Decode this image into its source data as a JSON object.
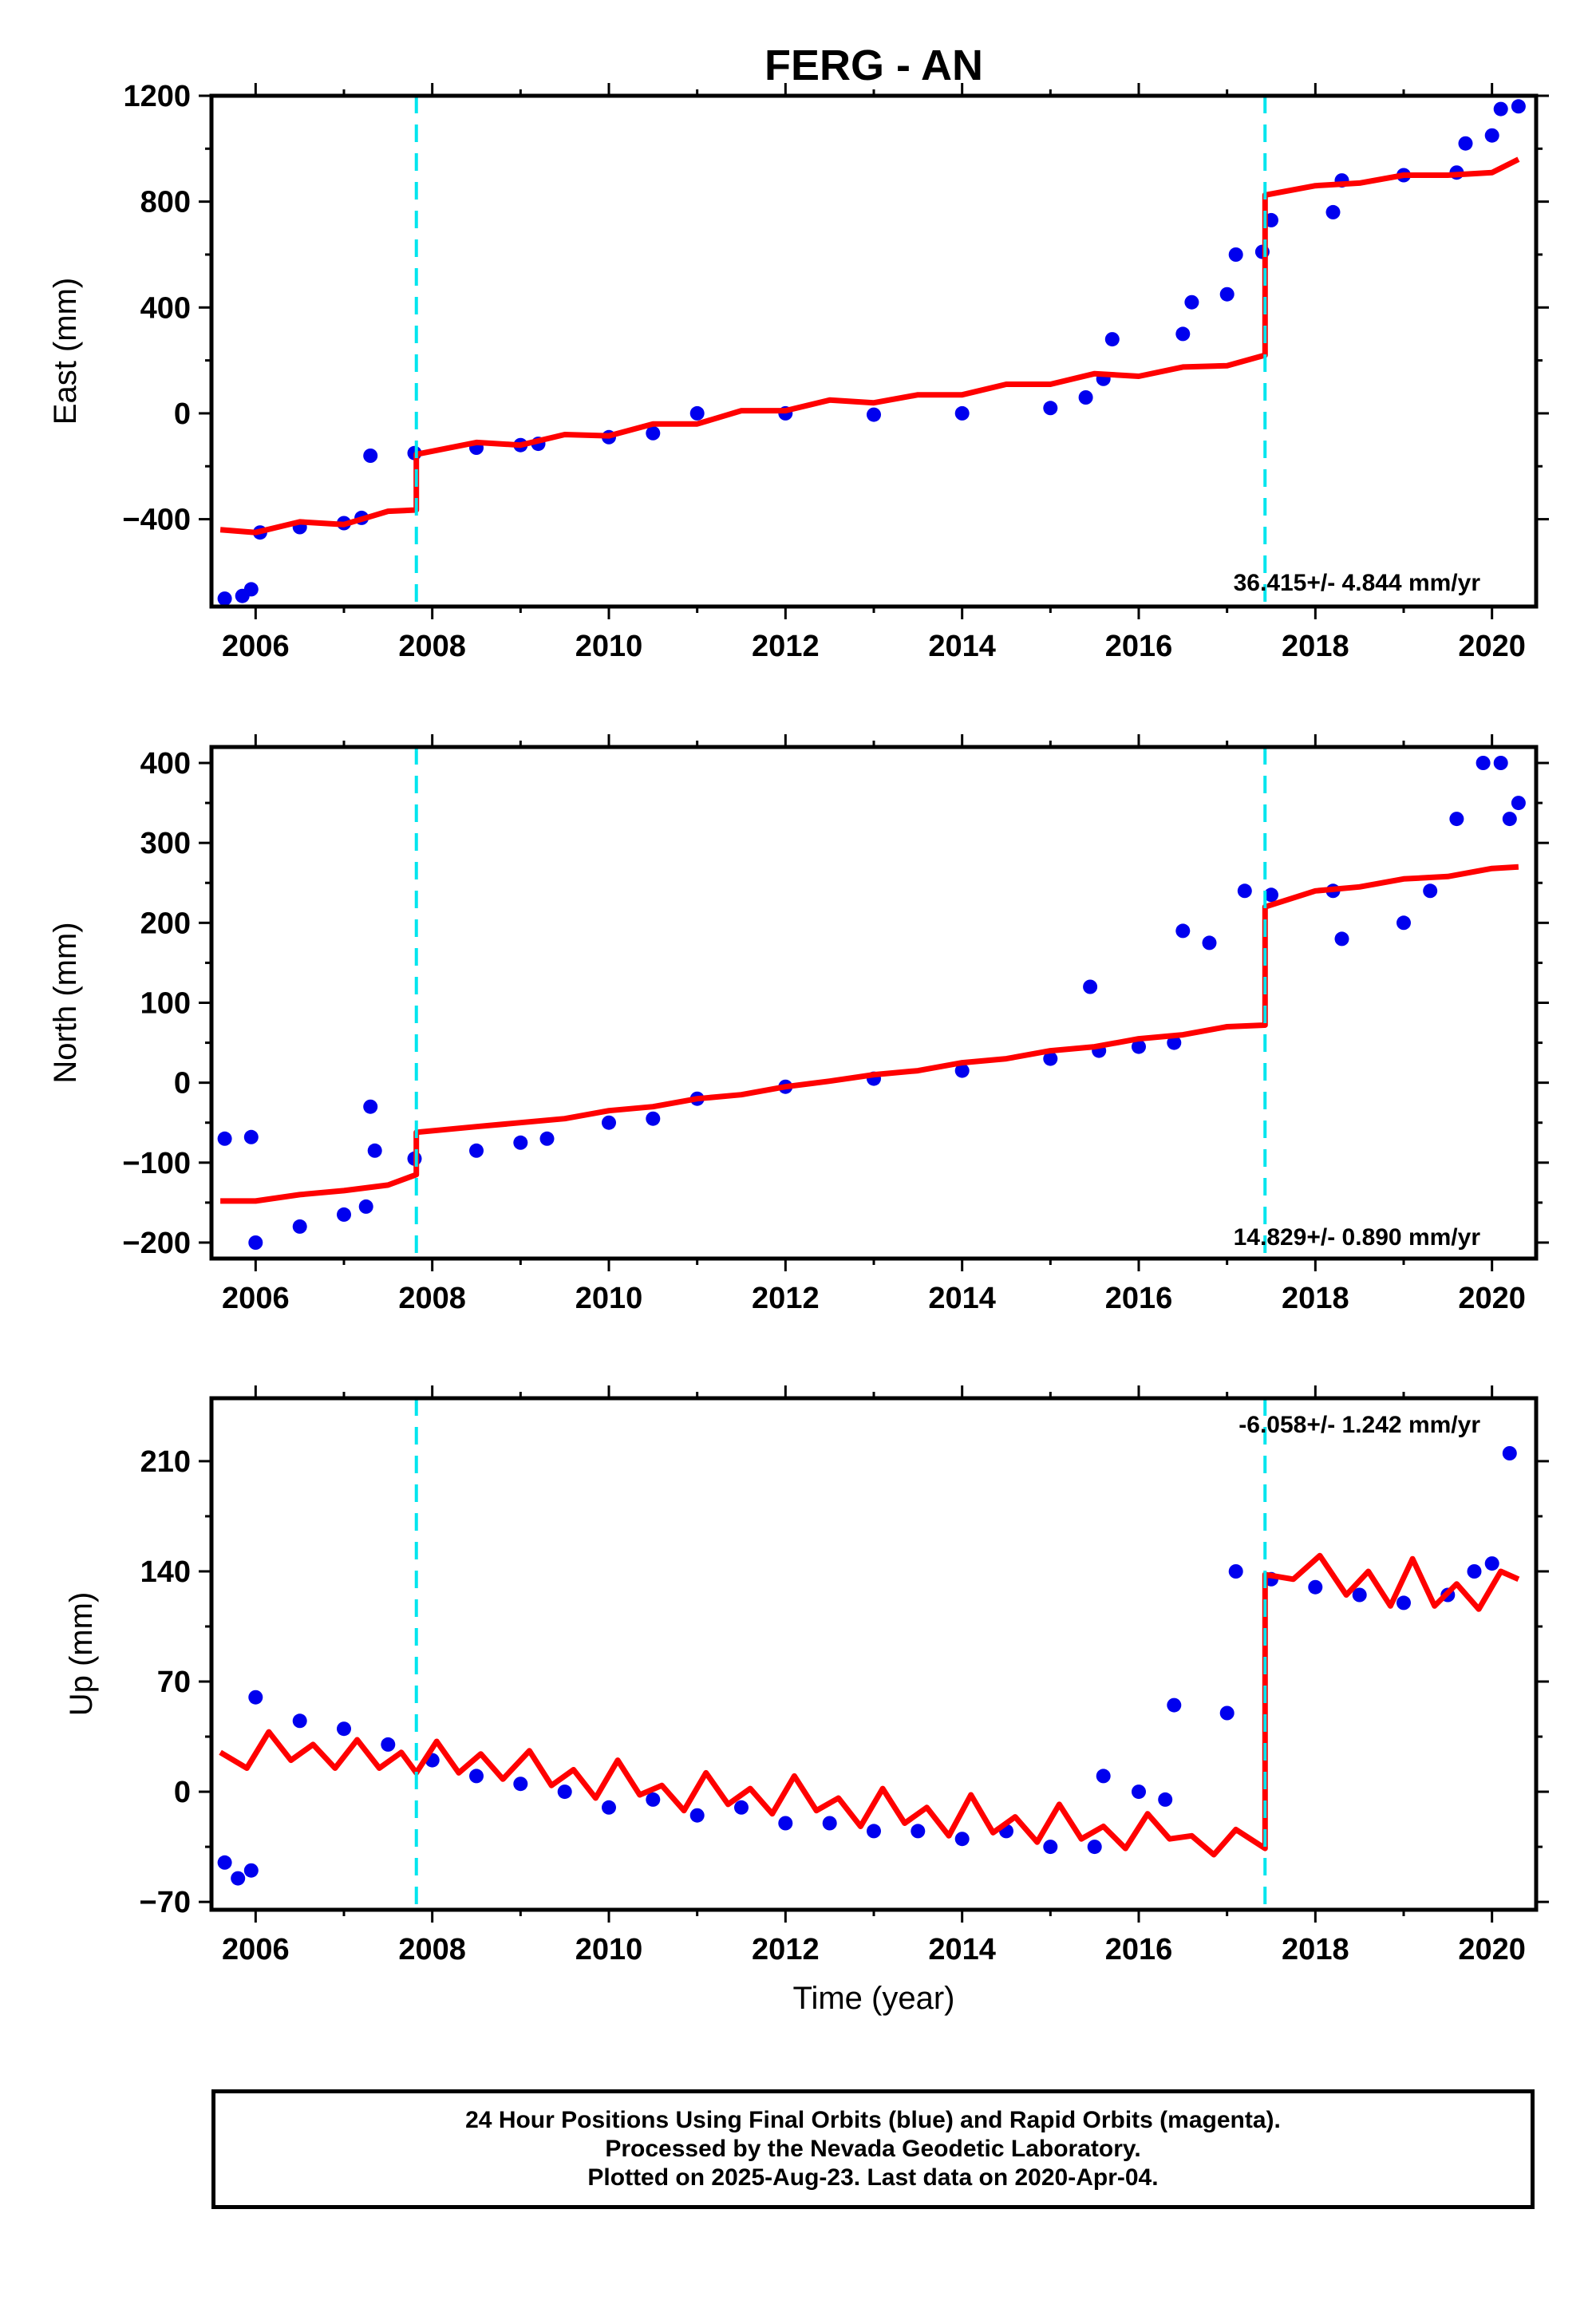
{
  "chart_data": [
    {
      "type": "scatter",
      "title": "FERG - AN",
      "ylabel": "East (mm)",
      "xlabel": "",
      "xlim": [
        2005.5,
        2020.5
      ],
      "ylim": [
        -730,
        1200
      ],
      "xticks": [
        2006,
        2008,
        2010,
        2012,
        2014,
        2016,
        2018,
        2020
      ],
      "xtick_labels": [
        "2006",
        "2008",
        "2010",
        "2012",
        "2014",
        "2016",
        "2018",
        "2020"
      ],
      "yticks": [
        -400,
        0,
        400,
        800,
        1200
      ],
      "ytick_labels": [
        "−400",
        "0",
        "400",
        "800",
        "1200"
      ],
      "rate_text": "36.415+/- 4.844 mm/yr",
      "offsets": [
        2007.82,
        2017.43
      ],
      "observations": [
        [
          2005.65,
          -700
        ],
        [
          2005.85,
          -690
        ],
        [
          2005.95,
          -665
        ],
        [
          2006.05,
          -450
        ],
        [
          2006.5,
          -430
        ],
        [
          2007.0,
          -415
        ],
        [
          2007.2,
          -395
        ],
        [
          2007.3,
          -160
        ],
        [
          2007.8,
          -150
        ],
        [
          2008.5,
          -130
        ],
        [
          2009.0,
          -120
        ],
        [
          2009.2,
          -115
        ],
        [
          2010.0,
          -90
        ],
        [
          2010.5,
          -75
        ],
        [
          2011.0,
          0
        ],
        [
          2012.0,
          0
        ],
        [
          2013.0,
          -5
        ],
        [
          2014.0,
          0
        ],
        [
          2015.0,
          20
        ],
        [
          2015.4,
          60
        ],
        [
          2015.6,
          130
        ],
        [
          2015.7,
          280
        ],
        [
          2016.5,
          300
        ],
        [
          2016.6,
          420
        ],
        [
          2017.0,
          450
        ],
        [
          2017.1,
          600
        ],
        [
          2017.4,
          610
        ],
        [
          2017.5,
          730
        ],
        [
          2018.2,
          760
        ],
        [
          2018.3,
          880
        ],
        [
          2019.0,
          900
        ],
        [
          2019.6,
          910
        ],
        [
          2019.7,
          1020
        ],
        [
          2020.0,
          1050
        ],
        [
          2020.1,
          1150
        ],
        [
          2020.3,
          1160
        ]
      ],
      "model_curve": [
        [
          2005.6,
          -440
        ],
        [
          2006.0,
          -450
        ],
        [
          2006.5,
          -410
        ],
        [
          2007.0,
          -420
        ],
        [
          2007.5,
          -370
        ],
        [
          2007.82,
          -365
        ],
        [
          2007.82,
          -155
        ],
        [
          2008.5,
          -110
        ],
        [
          2009.0,
          -120
        ],
        [
          2009.5,
          -80
        ],
        [
          2010.0,
          -85
        ],
        [
          2010.5,
          -40
        ],
        [
          2011.0,
          -40
        ],
        [
          2011.5,
          10
        ],
        [
          2012.0,
          10
        ],
        [
          2012.5,
          50
        ],
        [
          2013.0,
          40
        ],
        [
          2013.5,
          70
        ],
        [
          2014.0,
          70
        ],
        [
          2014.5,
          110
        ],
        [
          2015.0,
          110
        ],
        [
          2015.5,
          150
        ],
        [
          2016.0,
          140
        ],
        [
          2016.5,
          175
        ],
        [
          2017.0,
          180
        ],
        [
          2017.43,
          220
        ],
        [
          2017.43,
          825
        ],
        [
          2018.0,
          860
        ],
        [
          2018.5,
          870
        ],
        [
          2019.0,
          900
        ],
        [
          2019.5,
          900
        ],
        [
          2020.0,
          910
        ],
        [
          2020.3,
          960
        ]
      ]
    },
    {
      "type": "scatter",
      "title": "",
      "ylabel": "North (mm)",
      "xlabel": "",
      "xlim": [
        2005.5,
        2020.5
      ],
      "ylim": [
        -220,
        420
      ],
      "xticks": [
        2006,
        2008,
        2010,
        2012,
        2014,
        2016,
        2018,
        2020
      ],
      "xtick_labels": [
        "2006",
        "2008",
        "2010",
        "2012",
        "2014",
        "2016",
        "2018",
        "2020"
      ],
      "yticks": [
        -200,
        -100,
        0,
        100,
        200,
        300,
        400
      ],
      "ytick_labels": [
        "−200",
        "−100",
        "0",
        "100",
        "200",
        "300",
        "400"
      ],
      "rate_text": "14.829+/- 0.890 mm/yr",
      "offsets": [
        2007.82,
        2017.43
      ],
      "observations": [
        [
          2005.65,
          -70
        ],
        [
          2005.95,
          -68
        ],
        [
          2006.0,
          -200
        ],
        [
          2006.5,
          -180
        ],
        [
          2007.0,
          -165
        ],
        [
          2007.25,
          -155
        ],
        [
          2007.3,
          -30
        ],
        [
          2007.35,
          -85
        ],
        [
          2007.8,
          -95
        ],
        [
          2008.5,
          -85
        ],
        [
          2009.0,
          -75
        ],
        [
          2009.3,
          -70
        ],
        [
          2010.0,
          -50
        ],
        [
          2010.5,
          -45
        ],
        [
          2011.0,
          -20
        ],
        [
          2012.0,
          -5
        ],
        [
          2013.0,
          5
        ],
        [
          2014.0,
          15
        ],
        [
          2015.0,
          30
        ],
        [
          2015.45,
          120
        ],
        [
          2015.55,
          40
        ],
        [
          2016.0,
          45
        ],
        [
          2016.4,
          50
        ],
        [
          2016.5,
          190
        ],
        [
          2016.8,
          175
        ],
        [
          2017.2,
          240
        ],
        [
          2017.5,
          235
        ],
        [
          2018.2,
          240
        ],
        [
          2018.3,
          180
        ],
        [
          2019.0,
          200
        ],
        [
          2019.3,
          240
        ],
        [
          2019.6,
          330
        ],
        [
          2019.9,
          400
        ],
        [
          2020.1,
          400
        ],
        [
          2020.2,
          330
        ],
        [
          2020.3,
          350
        ]
      ],
      "model_curve": [
        [
          2005.6,
          -148
        ],
        [
          2006.0,
          -148
        ],
        [
          2006.5,
          -140
        ],
        [
          2007.0,
          -135
        ],
        [
          2007.5,
          -128
        ],
        [
          2007.82,
          -115
        ],
        [
          2007.82,
          -62
        ],
        [
          2008.5,
          -55
        ],
        [
          2009.0,
          -50
        ],
        [
          2009.5,
          -45
        ],
        [
          2010.0,
          -35
        ],
        [
          2010.5,
          -30
        ],
        [
          2011.0,
          -20
        ],
        [
          2011.5,
          -15
        ],
        [
          2012.0,
          -5
        ],
        [
          2012.5,
          2
        ],
        [
          2013.0,
          10
        ],
        [
          2013.5,
          15
        ],
        [
          2014.0,
          25
        ],
        [
          2014.5,
          30
        ],
        [
          2015.0,
          40
        ],
        [
          2015.5,
          45
        ],
        [
          2016.0,
          55
        ],
        [
          2016.5,
          60
        ],
        [
          2017.0,
          70
        ],
        [
          2017.43,
          72
        ],
        [
          2017.43,
          220
        ],
        [
          2018.0,
          240
        ],
        [
          2018.5,
          245
        ],
        [
          2019.0,
          255
        ],
        [
          2019.5,
          258
        ],
        [
          2020.0,
          268
        ],
        [
          2020.3,
          270
        ]
      ]
    },
    {
      "type": "scatter",
      "title": "",
      "ylabel": "Up (mm)",
      "xlabel": "Time (year)",
      "xlim": [
        2005.5,
        2020.5
      ],
      "ylim": [
        -75,
        250
      ],
      "xticks": [
        2006,
        2008,
        2010,
        2012,
        2014,
        2016,
        2018,
        2020
      ],
      "xtick_labels": [
        "2006",
        "2008",
        "2010",
        "2012",
        "2014",
        "2016",
        "2018",
        "2020"
      ],
      "yticks": [
        -70,
        0,
        70,
        140,
        210
      ],
      "ytick_labels": [
        "−70",
        "0",
        "70",
        "140",
        "210"
      ],
      "rate_text": "-6.058+/- 1.242 mm/yr",
      "offsets": [
        2007.82,
        2017.43
      ],
      "observations": [
        [
          2005.65,
          -45
        ],
        [
          2005.8,
          -55
        ],
        [
          2005.95,
          -50
        ],
        [
          2006.0,
          60
        ],
        [
          2006.5,
          45
        ],
        [
          2007.0,
          40
        ],
        [
          2007.5,
          30
        ],
        [
          2008.0,
          20
        ],
        [
          2008.5,
          10
        ],
        [
          2009.0,
          5
        ],
        [
          2009.5,
          0
        ],
        [
          2010.0,
          -10
        ],
        [
          2010.5,
          -5
        ],
        [
          2011.0,
          -15
        ],
        [
          2011.5,
          -10
        ],
        [
          2012.0,
          -20
        ],
        [
          2012.5,
          -20
        ],
        [
          2013.0,
          -25
        ],
        [
          2013.5,
          -25
        ],
        [
          2014.0,
          -30
        ],
        [
          2014.5,
          -25
        ],
        [
          2015.0,
          -35
        ],
        [
          2015.5,
          -35
        ],
        [
          2015.6,
          10
        ],
        [
          2016.0,
          0
        ],
        [
          2016.3,
          -5
        ],
        [
          2016.4,
          55
        ],
        [
          2017.0,
          50
        ],
        [
          2017.1,
          140
        ],
        [
          2017.5,
          135
        ],
        [
          2018.0,
          130
        ],
        [
          2018.5,
          125
        ],
        [
          2019.0,
          120
        ],
        [
          2019.5,
          125
        ],
        [
          2019.8,
          140
        ],
        [
          2020.0,
          145
        ],
        [
          2020.2,
          215
        ]
      ],
      "model_curve": [
        [
          2005.6,
          25
        ],
        [
          2005.9,
          15
        ],
        [
          2006.15,
          38
        ],
        [
          2006.4,
          20
        ],
        [
          2006.65,
          30
        ],
        [
          2006.9,
          15
        ],
        [
          2007.15,
          33
        ],
        [
          2007.4,
          15
        ],
        [
          2007.65,
          25
        ],
        [
          2007.82,
          12
        ],
        [
          2008.05,
          32
        ],
        [
          2008.3,
          12
        ],
        [
          2008.55,
          24
        ],
        [
          2008.8,
          8
        ],
        [
          2009.1,
          26
        ],
        [
          2009.35,
          4
        ],
        [
          2009.6,
          14
        ],
        [
          2009.85,
          -4
        ],
        [
          2010.1,
          20
        ],
        [
          2010.35,
          -2
        ],
        [
          2010.6,
          4
        ],
        [
          2010.85,
          -12
        ],
        [
          2011.1,
          12
        ],
        [
          2011.35,
          -8
        ],
        [
          2011.6,
          2
        ],
        [
          2011.85,
          -14
        ],
        [
          2012.1,
          10
        ],
        [
          2012.35,
          -12
        ],
        [
          2012.6,
          -4
        ],
        [
          2012.85,
          -22
        ],
        [
          2013.1,
          2
        ],
        [
          2013.35,
          -20
        ],
        [
          2013.6,
          -10
        ],
        [
          2013.85,
          -28
        ],
        [
          2014.1,
          -2
        ],
        [
          2014.35,
          -26
        ],
        [
          2014.6,
          -16
        ],
        [
          2014.85,
          -32
        ],
        [
          2015.1,
          -8
        ],
        [
          2015.35,
          -30
        ],
        [
          2015.6,
          -22
        ],
        [
          2015.85,
          -36
        ],
        [
          2016.1,
          -14
        ],
        [
          2016.35,
          -30
        ],
        [
          2016.6,
          -28
        ],
        [
          2016.85,
          -40
        ],
        [
          2017.1,
          -24
        ],
        [
          2017.43,
          -36
        ],
        [
          2017.43,
          138
        ],
        [
          2017.75,
          135
        ],
        [
          2018.05,
          150
        ],
        [
          2018.35,
          125
        ],
        [
          2018.6,
          140
        ],
        [
          2018.85,
          118
        ],
        [
          2019.1,
          148
        ],
        [
          2019.35,
          118
        ],
        [
          2019.6,
          132
        ],
        [
          2019.85,
          116
        ],
        [
          2020.1,
          140
        ],
        [
          2020.3,
          135
        ]
      ]
    }
  ],
  "footer": {
    "line1": "24 Hour Positions Using Final Orbits (blue) and Rapid Orbits (magenta).",
    "line2": "Processed by the Nevada Geodetic Laboratory.",
    "line3": "Plotted on 2025-Aug-23. Last data on 2020-Apr-04."
  },
  "colors": {
    "observations": "#0000ee",
    "model": "#ff0000",
    "offset_lines": "#00e5ee"
  }
}
